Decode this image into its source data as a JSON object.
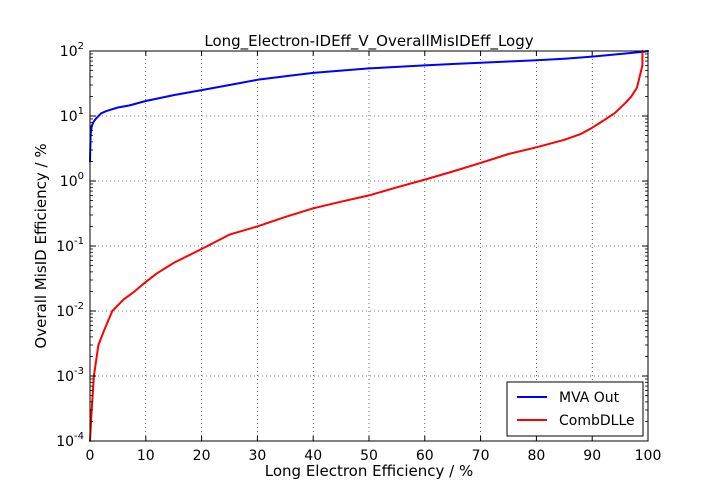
{
  "chart_data": {
    "type": "line",
    "title": "Long_Electron-IDEff_V_OverallMisIDEff_Logy",
    "xlabel": "Long Electron Efficiency / %",
    "ylabel": "Overall MisID Efficiency / %",
    "xlim": [
      0,
      100
    ],
    "ylim": [
      0.0001,
      100
    ],
    "yscale": "log",
    "grid": true,
    "legend_position": "bottom-right",
    "x_ticks": [
      "0",
      "10",
      "20",
      "30",
      "40",
      "50",
      "60",
      "70",
      "80",
      "90",
      "100"
    ],
    "y_ticks": [
      {
        "value": 0.0001,
        "base": "10",
        "exp": "-4"
      },
      {
        "value": 0.001,
        "base": "10",
        "exp": "-3"
      },
      {
        "value": 0.01,
        "base": "10",
        "exp": "-2"
      },
      {
        "value": 0.1,
        "base": "10",
        "exp": "-1"
      },
      {
        "value": 1,
        "base": "10",
        "exp": "0"
      },
      {
        "value": 10,
        "base": "10",
        "exp": "1"
      },
      {
        "value": 100,
        "base": "10",
        "exp": "2"
      }
    ],
    "series": [
      {
        "name": "MVA Out",
        "color": "#0000ff",
        "x": [
          0,
          0.1,
          0.3,
          0.6,
          1,
          2,
          3,
          5,
          7,
          10,
          15,
          20,
          25,
          30,
          35,
          40,
          45,
          50,
          55,
          60,
          65,
          70,
          75,
          80,
          85,
          90,
          95,
          98,
          99,
          100
        ],
        "y": [
          2,
          5,
          7,
          8,
          9,
          11,
          12,
          13.5,
          14.5,
          17,
          21,
          25,
          30,
          36,
          41,
          46,
          50,
          54,
          57,
          60,
          63,
          66,
          69,
          72,
          76,
          82,
          90,
          95,
          97,
          100
        ]
      },
      {
        "name": "CombDLLe",
        "color": "#ff0000",
        "x": [
          0,
          0.3,
          0.7,
          1.5,
          2.5,
          4,
          6,
          8,
          10,
          12,
          15,
          20,
          25,
          30,
          35,
          40,
          45,
          50,
          55,
          60,
          65,
          70,
          75,
          80,
          85,
          88,
          90,
          92,
          94,
          96,
          97,
          98,
          98.5,
          99,
          99,
          99
        ],
        "y": [
          0.0001,
          0.0003,
          0.001,
          0.003,
          0.005,
          0.01,
          0.015,
          0.02,
          0.028,
          0.038,
          0.055,
          0.09,
          0.15,
          0.2,
          0.28,
          0.38,
          0.48,
          0.6,
          0.8,
          1.05,
          1.4,
          1.9,
          2.6,
          3.3,
          4.3,
          5.3,
          6.6,
          8.5,
          11,
          16,
          20,
          27,
          40,
          60,
          80,
          100
        ]
      }
    ]
  }
}
